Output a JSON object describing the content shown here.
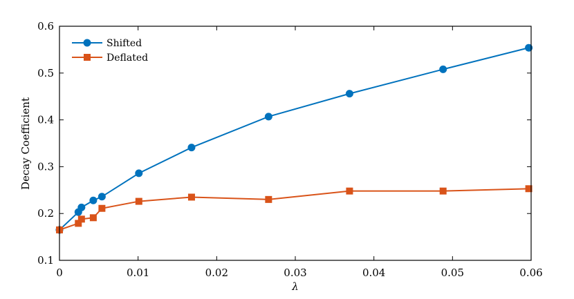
{
  "chart_data": {
    "type": "line",
    "xlabel": "λ",
    "ylabel": "Decay Coefficient",
    "xlim": [
      0,
      0.06
    ],
    "ylim": [
      0.1,
      0.6
    ],
    "x_ticks": [
      0,
      0.01,
      0.02,
      0.03,
      0.04,
      0.05,
      0.06
    ],
    "x_tick_labels": [
      "0",
      "0.01",
      "0.02",
      "0.03",
      "0.04",
      "0.05",
      "0.06"
    ],
    "y_ticks": [
      0.1,
      0.2,
      0.3,
      0.4,
      0.5,
      0.6
    ],
    "y_tick_labels": [
      "0.1",
      "0.2",
      "0.3",
      "0.4",
      "0.5",
      "0.6"
    ],
    "grid": false,
    "legend_position": "top-left",
    "series": [
      {
        "name": "Shifted",
        "color": "#0072BD",
        "marker": "circle",
        "x": [
          0,
          0.0024,
          0.0028,
          0.0043,
          0.0054,
          0.0101,
          0.0168,
          0.0266,
          0.0369,
          0.0488,
          0.0597
        ],
        "y": [
          0.165,
          0.203,
          0.213,
          0.228,
          0.236,
          0.286,
          0.341,
          0.407,
          0.456,
          0.508,
          0.554
        ]
      },
      {
        "name": "Deflated",
        "color": "#D95319",
        "marker": "square",
        "x": [
          0,
          0.0024,
          0.0028,
          0.0043,
          0.0054,
          0.0101,
          0.0168,
          0.0266,
          0.0369,
          0.0488,
          0.0597
        ],
        "y": [
          0.165,
          0.179,
          0.188,
          0.191,
          0.211,
          0.226,
          0.235,
          0.23,
          0.248,
          0.248,
          0.253
        ]
      }
    ]
  }
}
